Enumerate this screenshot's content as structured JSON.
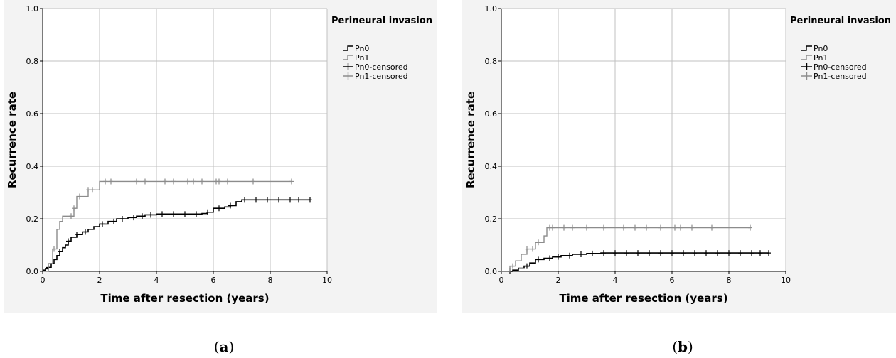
{
  "panels": [
    {
      "id": "a",
      "label_open": "(",
      "label_letter": "a",
      "label_close": ")"
    },
    {
      "id": "b",
      "label_open": "(",
      "label_letter": "b",
      "label_close": ")"
    }
  ],
  "colors": {
    "pn0": "#000000",
    "pn1": "#8c8c8c",
    "grid": "#c0c0c0",
    "axis": "#000000"
  },
  "chart_data": [
    {
      "type": "line",
      "title": "",
      "xlabel": "Time after resection (years)",
      "ylabel": "Recurrence rate",
      "xlim": [
        0,
        10
      ],
      "ylim": [
        0,
        1.0
      ],
      "xticks": [
        "0",
        "2",
        "4",
        "6",
        "8",
        "10"
      ],
      "yticks": [
        "0.0",
        "0.2",
        "0.4",
        "0.6",
        "0.8",
        "1.0"
      ],
      "grid": true,
      "legend": {
        "title": "Perineural invasion",
        "position": "top-right",
        "entries": [
          "Pn0",
          "Pn1",
          "Pn0-censored",
          "Pn1-censored"
        ]
      },
      "series": [
        {
          "name": "Pn0",
          "x": [
            0,
            0.1,
            0.2,
            0.3,
            0.4,
            0.5,
            0.6,
            0.7,
            0.8,
            0.9,
            1.0,
            1.2,
            1.4,
            1.6,
            1.8,
            2.0,
            2.3,
            2.6,
            3.0,
            3.3,
            3.6,
            4.0,
            5.0,
            5.6,
            5.8,
            6.0,
            6.4,
            6.6,
            6.8,
            7.0,
            9.4
          ],
          "y": [
            0.005,
            0.01,
            0.015,
            0.03,
            0.045,
            0.06,
            0.075,
            0.09,
            0.1,
            0.115,
            0.13,
            0.14,
            0.15,
            0.16,
            0.17,
            0.18,
            0.19,
            0.2,
            0.205,
            0.21,
            0.215,
            0.218,
            0.218,
            0.22,
            0.225,
            0.24,
            0.245,
            0.25,
            0.265,
            0.272,
            0.272
          ],
          "censored_x": [
            0.2,
            0.6,
            0.9,
            1.2,
            1.5,
            2.1,
            2.5,
            2.8,
            3.2,
            3.5,
            3.8,
            4.2,
            4.6,
            5.0,
            5.4,
            5.8,
            6.2,
            6.6,
            7.1,
            7.5,
            7.9,
            8.3,
            8.7,
            9.0,
            9.4
          ]
        },
        {
          "name": "Pn1",
          "x": [
            0,
            0.2,
            0.35,
            0.5,
            0.6,
            0.7,
            1.0,
            1.1,
            1.2,
            1.5,
            1.6,
            1.9,
            2.0,
            8.75
          ],
          "y": [
            0.0,
            0.03,
            0.085,
            0.16,
            0.19,
            0.21,
            0.21,
            0.24,
            0.285,
            0.285,
            0.31,
            0.31,
            0.342,
            0.342
          ],
          "censored_x": [
            0.4,
            1.0,
            1.1,
            1.3,
            1.6,
            1.75,
            2.2,
            2.4,
            3.3,
            3.6,
            4.3,
            4.6,
            5.1,
            5.3,
            5.6,
            6.1,
            6.2,
            6.5,
            7.4,
            8.75
          ]
        }
      ]
    },
    {
      "type": "line",
      "title": "",
      "xlabel": "Time after resection (years)",
      "ylabel": "Recurrence rate",
      "xlim": [
        0,
        10
      ],
      "ylim": [
        0,
        1.0
      ],
      "xticks": [
        "0",
        "2",
        "4",
        "6",
        "8",
        "10"
      ],
      "yticks": [
        "0.0",
        "0.2",
        "0.4",
        "0.6",
        "0.8",
        "1.0"
      ],
      "grid": true,
      "legend": {
        "title": "Perineural invasion",
        "position": "top-right",
        "entries": [
          "Pn0",
          "Pn1",
          "Pn0-censored",
          "Pn1-censored"
        ]
      },
      "series": [
        {
          "name": "Pn0",
          "x": [
            0,
            0.4,
            0.6,
            0.8,
            1.0,
            1.2,
            1.5,
            1.8,
            2.1,
            2.5,
            3.0,
            3.5,
            9.4
          ],
          "y": [
            0.0,
            0.005,
            0.012,
            0.02,
            0.032,
            0.045,
            0.05,
            0.055,
            0.06,
            0.065,
            0.068,
            0.07,
            0.07
          ],
          "censored_x": [
            0.3,
            0.9,
            1.3,
            1.7,
            2.0,
            2.4,
            2.8,
            3.2,
            3.6,
            4.0,
            4.4,
            4.8,
            5.2,
            5.6,
            6.0,
            6.4,
            6.8,
            7.2,
            7.6,
            8.0,
            8.4,
            8.8,
            9.1,
            9.4
          ]
        },
        {
          "name": "Pn1",
          "x": [
            0,
            0.3,
            0.5,
            0.7,
            0.9,
            1.2,
            1.5,
            1.6,
            8.75
          ],
          "y": [
            0.0,
            0.02,
            0.04,
            0.065,
            0.085,
            0.11,
            0.135,
            0.166,
            0.166
          ],
          "censored_x": [
            0.4,
            0.9,
            1.1,
            1.3,
            1.7,
            1.8,
            2.2,
            2.5,
            3.0,
            3.6,
            4.3,
            4.7,
            5.1,
            5.6,
            6.1,
            6.3,
            6.7,
            7.4,
            8.75
          ]
        }
      ]
    }
  ]
}
